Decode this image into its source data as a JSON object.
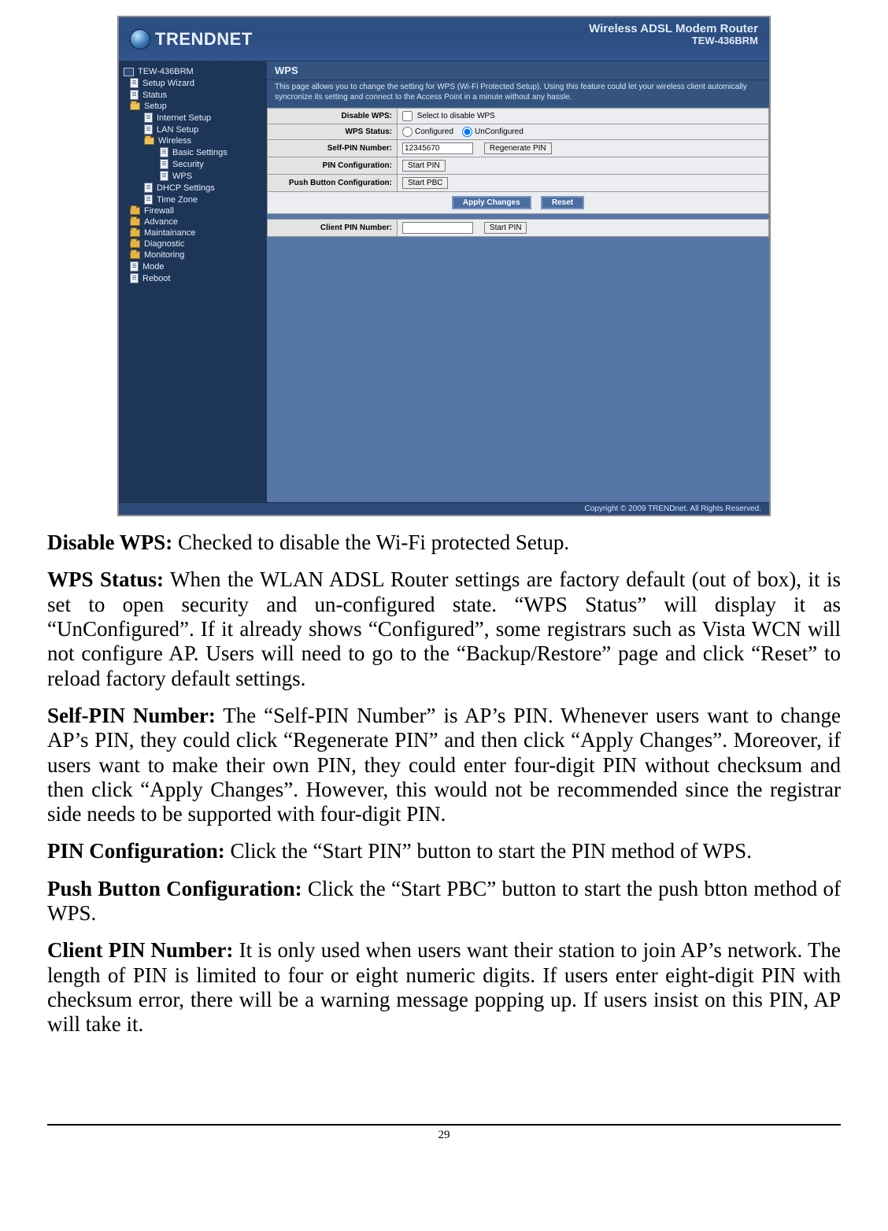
{
  "colors": {
    "router_bg": "#5776a8",
    "router_header": "#2e5185",
    "sidebar_bg": "#1d3557",
    "section_title_bg": "#34547f",
    "form_bg": "#ecedf1",
    "form_border": "#999999",
    "dark_button_bg": "#4a6da2"
  },
  "router": {
    "brand": "TRENDNET",
    "header_title": "Wireless ADSL Modem Router",
    "header_model": "TEW-436BRM",
    "nav": {
      "root": "TEW-436BRM",
      "setup_wizard": "Setup Wizard",
      "status": "Status",
      "setup": "Setup",
      "internet_setup": "Internet Setup",
      "lan_setup": "LAN Setup",
      "wireless": "Wireless",
      "basic_settings": "Basic Settings",
      "security": "Security",
      "wps": "WPS",
      "dhcp_settings": "DHCP Settings",
      "time_zone": "Time Zone",
      "firewall": "Firewall",
      "advance": "Advance",
      "maintainance": "Maintainance",
      "diagnostic": "Diagnostic",
      "monitoring": "Monitoring",
      "mode": "Mode",
      "reboot": "Reboot"
    },
    "section": {
      "title": "WPS",
      "desc": "This page allows you to change the setting for WPS (Wi-Fi Protected Setup). Using this feature could let your wireless client automically syncronize its setting and connect to the Access Point in a minute without any hassle."
    },
    "form": {
      "disable_wps_label": "Disable WPS:",
      "disable_wps_text": "Select to disable WPS",
      "wps_status_label": "WPS Status:",
      "configured": "Configured",
      "unconfigured": "UnConfigured",
      "self_pin_label": "Self-PIN Number:",
      "self_pin_value": "12345670",
      "regenerate_pin": "Regenerate PIN",
      "pin_config_label": "PIN Configuration:",
      "start_pin": "Start PIN",
      "pbc_label": "Push Button Configuration:",
      "start_pbc": "Start PBC",
      "apply_changes": "Apply Changes",
      "reset": "Reset",
      "client_pin_label": "Client PIN Number:",
      "client_pin_value": ""
    },
    "footer": "Copyright © 2009 TRENDnet. All Rights Reserved."
  },
  "doc": {
    "p1_label": "Disable WPS:",
    "p1_body": "  Checked to disable the Wi-Fi protected Setup.",
    "p2_label": "WPS Status:",
    "p2_body": "  When the WLAN ADSL Router settings are factory default (out of box), it is set to open security and un-configured state. “WPS Status” will display it as “UnConfigured”. If it already shows “Configured”, some registrars such as Vista WCN will not configure AP. Users will need to go to the “Backup/Restore” page and click “Reset” to reload factory default settings.",
    "p3_label": "Self-PIN Number:",
    "p3_body": "  The “Self-PIN Number” is AP’s PIN. Whenever users want to change AP’s PIN, they could click “Regenerate PIN” and then click “Apply Changes”. Moreover, if users want to make their own PIN, they could enter four-digit PIN without checksum and then click “Apply Changes”. However, this would not be recommended since the registrar side needs to be supported with four-digit PIN.",
    "p4_label": "PIN Configuration:",
    "p4_body": "  Click the “Start PIN” button to start the PIN method of WPS.",
    "p5_label": "Push Button Configuration:",
    "p5_body": "  Click the “Start PBC” button to start the push btton method of WPS.",
    "p6_label": "Client PIN Number:",
    "p6_body": "  It is only used when users want their station to join AP’s network. The length of PIN is limited to four or eight numeric digits. If users enter eight-digit PIN with checksum error, there will be a warning message popping up. If users insist on this PIN, AP will take it."
  },
  "page_number": "29"
}
